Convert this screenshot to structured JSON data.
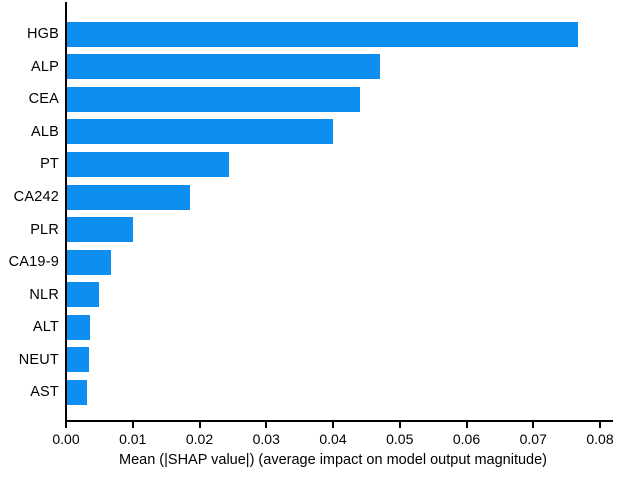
{
  "chart_data": {
    "type": "bar",
    "orientation": "horizontal",
    "title": "",
    "xlabel": "Mean (|SHAP value|) (average impact on model output magnitude)",
    "ylabel": "",
    "categories": [
      "HGB",
      "ALP",
      "CEA",
      "ALB",
      "PT",
      "CA242",
      "PLR",
      "CA19-9",
      "NLR",
      "ALT",
      "NEUT",
      "AST"
    ],
    "values": [
      0.0767,
      0.0471,
      0.044,
      0.04,
      0.0244,
      0.0186,
      0.0101,
      0.0067,
      0.005,
      0.0036,
      0.0034,
      0.0032
    ],
    "xlim": [
      0,
      0.08
    ],
    "xticks": [
      0,
      0.01,
      0.02,
      0.03,
      0.04,
      0.05,
      0.06,
      0.07,
      0.08
    ],
    "xtick_labels": [
      "0.00",
      "0.01",
      "0.02",
      "0.03",
      "0.04",
      "0.05",
      "0.06",
      "0.07",
      "0.08"
    ],
    "grid": false,
    "legend": null,
    "colors": {
      "bar": "#0d8ef0",
      "axis": "#000000",
      "text": "#000000",
      "background": "#ffffff"
    }
  }
}
